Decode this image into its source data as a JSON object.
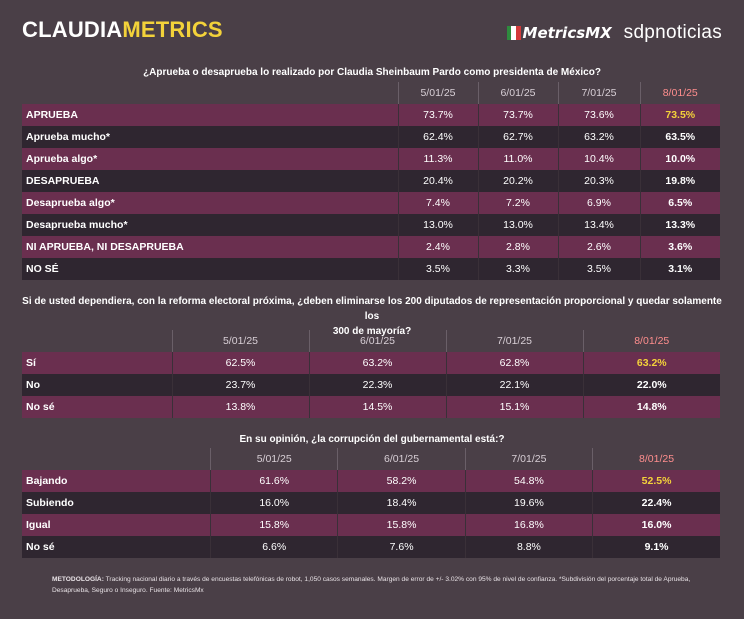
{
  "header": {
    "logo_part1": "CLAUDIA",
    "logo_part2": "METRICS",
    "partner1": "etricsMX",
    "partner1_initial": "M",
    "partner2": "sdpnoticias"
  },
  "colors": {
    "accent_yellow": "#f3d23a",
    "highlight_date": "#ff8e8e",
    "row_light": "#6a2f4f",
    "row_dark": "#2f2630",
    "background": "#4a3f47"
  },
  "table1": {
    "question": "¿Aprueba o desaprueba lo realizado por Claudia Sheinbaum Pardo como presidenta de México?",
    "dates": [
      "5/01/25",
      "6/01/25",
      "7/01/25",
      "8/01/25"
    ],
    "rows": [
      {
        "label": "APRUEBA",
        "values": [
          "73.7%",
          "73.7%",
          "73.6%",
          "73.5%"
        ]
      },
      {
        "label": "Aprueba mucho*",
        "values": [
          "62.4%",
          "62.7%",
          "63.2%",
          "63.5%"
        ]
      },
      {
        "label": "Aprueba algo*",
        "values": [
          "11.3%",
          "11.0%",
          "10.4%",
          "10.0%"
        ]
      },
      {
        "label": "DESAPRUEBA",
        "values": [
          "20.4%",
          "20.2%",
          "20.3%",
          "19.8%"
        ]
      },
      {
        "label": "Desaprueba algo*",
        "values": [
          "7.4%",
          "7.2%",
          "6.9%",
          "6.5%"
        ]
      },
      {
        "label": "Desaprueba mucho*",
        "values": [
          "13.0%",
          "13.0%",
          "13.4%",
          "13.3%"
        ]
      },
      {
        "label": "NI APRUEBA, NI DESAPRUEBA",
        "values": [
          "2.4%",
          "2.8%",
          "2.6%",
          "3.6%"
        ]
      },
      {
        "label": "NO SÉ",
        "values": [
          "3.5%",
          "3.3%",
          "3.5%",
          "3.1%"
        ]
      }
    ]
  },
  "table2": {
    "question_line1": "Si de usted dependiera, con la reforma electoral próxima, ¿deben eliminarse los 200 diputados de representación proporcional y quedar solamente los",
    "question_line2": "300 de mayoría?",
    "dates": [
      "5/01/25",
      "6/01/25",
      "7/01/25",
      "8/01/25"
    ],
    "rows": [
      {
        "label": "Sí",
        "values": [
          "62.5%",
          "63.2%",
          "62.8%",
          "63.2%"
        ]
      },
      {
        "label": "No",
        "values": [
          "23.7%",
          "22.3%",
          "22.1%",
          "22.0%"
        ]
      },
      {
        "label": "No sé",
        "values": [
          "13.8%",
          "14.5%",
          "15.1%",
          "14.8%"
        ]
      }
    ]
  },
  "table3": {
    "question": "En su opinión, ¿la corrupción del gubernamental está:?",
    "dates": [
      "5/01/25",
      "6/01/25",
      "7/01/25",
      "8/01/25"
    ],
    "rows": [
      {
        "label": "Bajando",
        "values": [
          "61.6%",
          "58.2%",
          "54.8%",
          "52.5%"
        ]
      },
      {
        "label": "Subiendo",
        "values": [
          "16.0%",
          "18.4%",
          "19.6%",
          "22.4%"
        ]
      },
      {
        "label": "Igual",
        "values": [
          "15.8%",
          "15.8%",
          "16.8%",
          "16.0%"
        ]
      },
      {
        "label": "No sé",
        "values": [
          "6.6%",
          "7.6%",
          "8.8%",
          "9.1%"
        ]
      }
    ]
  },
  "methodology": {
    "label": "METODOLOGÍA:",
    "text": " Tracking nacional diario a través de encuestas telefónicas de robot, 1,050 casos semanales. Margen de error de +/- 3.02% con 95% de nivel de confianza. *Subdivisión del porcentaje total de Aprueba, Desaprueba, Seguro o Inseguro. Fuente: MetricsMx"
  }
}
